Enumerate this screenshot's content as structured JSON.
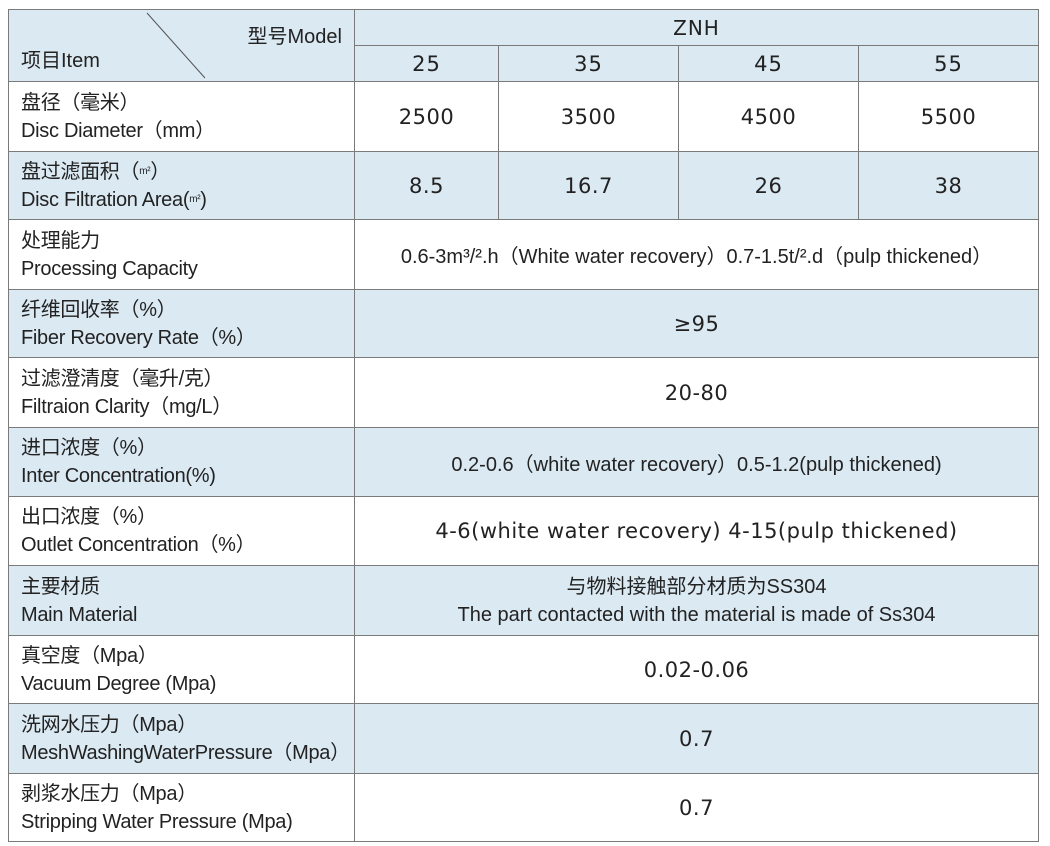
{
  "header": {
    "model_label": "型号Model",
    "item_label": "项目Item",
    "series": "ZNH",
    "models": [
      "25",
      "35",
      "45",
      "55"
    ]
  },
  "rows": [
    {
      "cn": "盘径（毫米）",
      "en": "Disc Diameter（mm）",
      "values": [
        "2500",
        "3500",
        "4500",
        "5500"
      ]
    },
    {
      "cn_pre": "盘过滤面积（",
      "cn_unit": "m²",
      "cn_post": "）",
      "en_pre": "Disc Filtration Area(",
      "en_unit": "m²",
      "en_post": ")",
      "values": [
        "8.5",
        "16.7",
        "26",
        "38"
      ]
    },
    {
      "cn": "处理能力",
      "en": "Processing Capacity",
      "value": "0.6-3m³/².h（White water recovery）0.7-1.5t/².d（pulp thickened）"
    },
    {
      "cn": "纤维回收率（%）",
      "en": "Fiber Recovery Rate（%）",
      "value": "≥95"
    },
    {
      "cn": "过滤澄清度（毫升/克）",
      "en": "Filtraion Clarity（mg/L）",
      "value": "20-80"
    },
    {
      "cn": "进口浓度（%）",
      "en": "Inter Concentration(%)",
      "value": "0.2-0.6（white water recovery）0.5-1.2(pulp thickened)"
    },
    {
      "cn": "出口浓度（%）",
      "en": "Outlet Concentration（%）",
      "value": "4-6(white water recovery) 4-15(pulp thickened)"
    },
    {
      "cn": "主要材质",
      "en": "Main Material",
      "value_cn": "与物料接触部分材质为SS304",
      "value_en": "The part contacted with the material is made of Ss304"
    },
    {
      "cn": "真空度（Mpa）",
      "en": "Vacuum Degree (Mpa)",
      "value": "0.02-0.06"
    },
    {
      "cn": "洗网水压力（Mpa）",
      "en": "MeshWashingWaterPressure（Mpa）",
      "value": "0.7"
    },
    {
      "cn": "剥浆水压力（Mpa）",
      "en": "Stripping Water Pressure (Mpa)",
      "value": "0.7"
    }
  ],
  "colors": {
    "shade": "#dbe9f3",
    "border": "#7a7a7a",
    "text": "#222222"
  }
}
